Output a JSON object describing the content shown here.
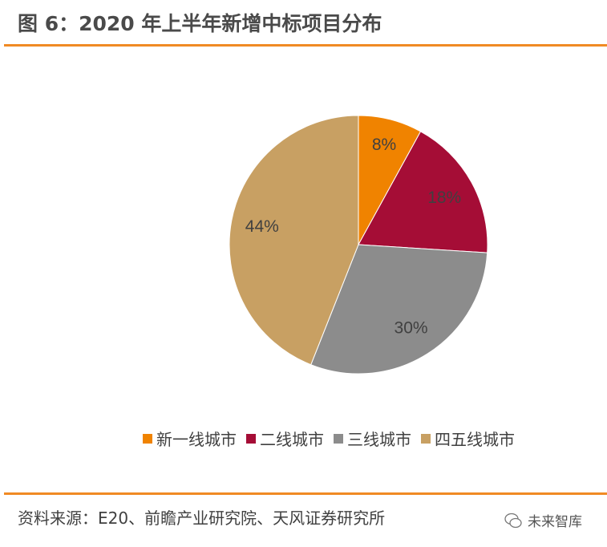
{
  "title": "图 6：2020 年上半年新增中标项目分布",
  "chart_data": {
    "type": "pie",
    "title": "图 6：2020 年上半年新增中标项目分布",
    "start": "top",
    "direction": "clockwise",
    "legend_position": "bottom",
    "slices": [
      {
        "label": "新一线城市",
        "value": 8,
        "data_label": "8%",
        "color": "#F08300"
      },
      {
        "label": "二线城市",
        "value": 18,
        "data_label": "18%",
        "color": "#A50D36"
      },
      {
        "label": "三线城市",
        "value": 30,
        "data_label": "30%",
        "color": "#8C8C8C"
      },
      {
        "label": "四五线城市",
        "value": 44,
        "data_label": "44%",
        "color": "#C8A063"
      }
    ]
  },
  "source": "资料来源：E20、前瞻产业研究院、天风证券研究所",
  "watermark": "未来智库"
}
